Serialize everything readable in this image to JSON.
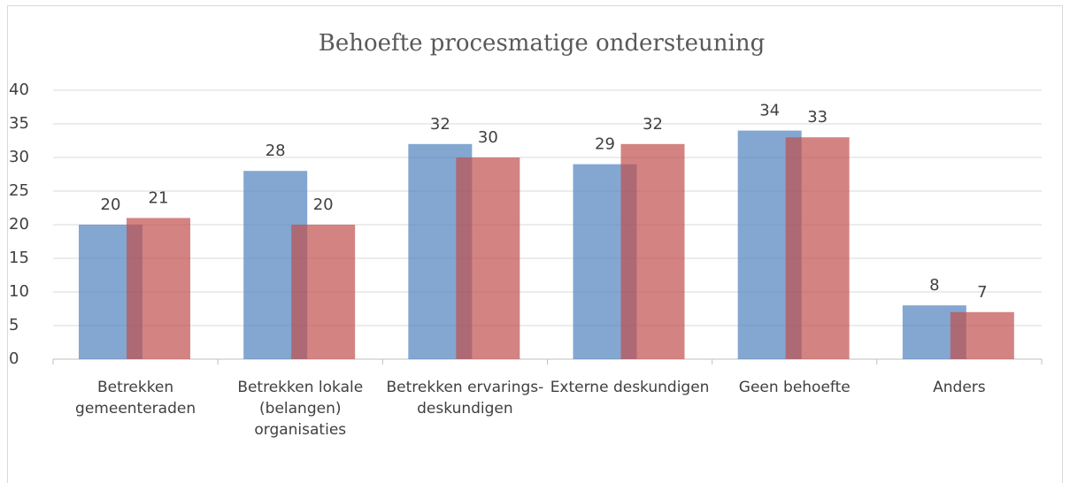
{
  "chart_data": {
    "type": "bar",
    "title": "Behoefte procesmatige ondersteuning",
    "categories": [
      "Betrekken gemeenteraden",
      "Betrekken lokale (belangen) organisaties",
      "Betrekken ervarings-deskundigen",
      "Externe deskundigen",
      "Geen behoefte",
      "Anders"
    ],
    "series": [
      {
        "color": "#4f81bd",
        "values": [
          20,
          28,
          32,
          29,
          34,
          8
        ]
      },
      {
        "color": "#c0504d",
        "values": [
          21,
          20,
          30,
          32,
          33,
          7
        ]
      }
    ],
    "ylim": [
      0,
      40
    ],
    "yticks": [
      0,
      5,
      10,
      15,
      20,
      25,
      30,
      35,
      40
    ],
    "grid": true
  }
}
